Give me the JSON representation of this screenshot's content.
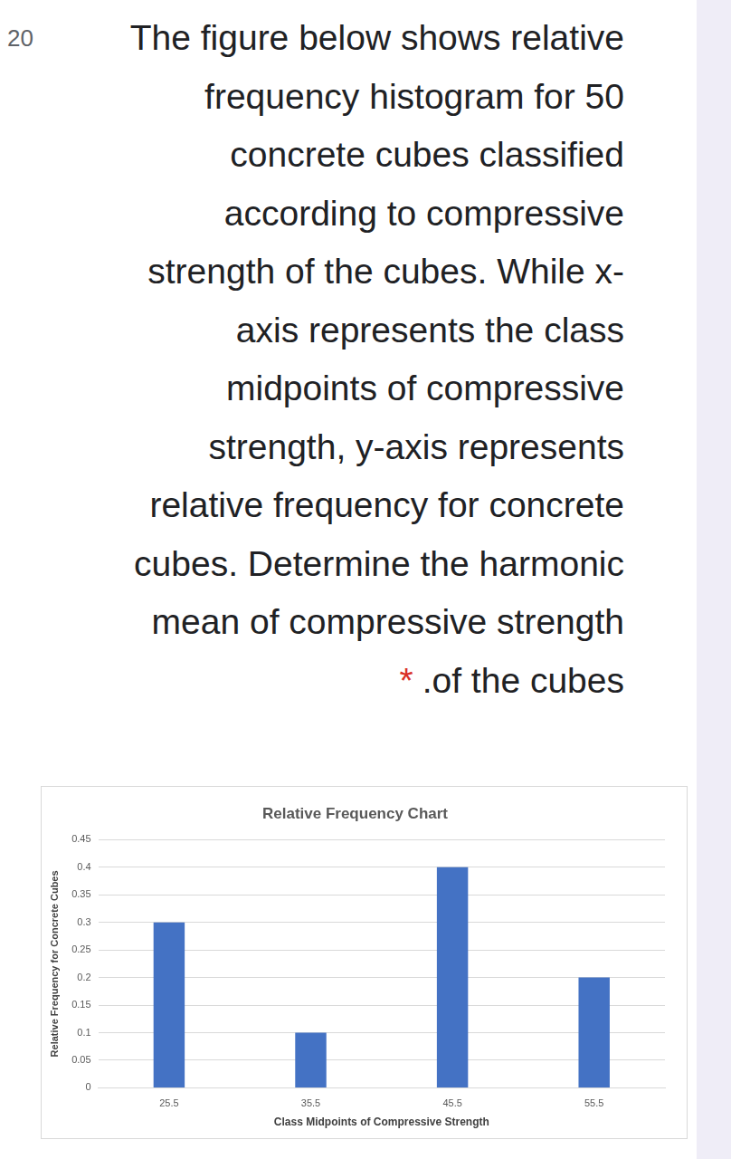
{
  "question": {
    "number": "20",
    "lines": [
      "The figure below shows relative",
      "frequency histogram for 50",
      "concrete cubes classified",
      "according to compressive",
      "strength of the cubes. While x-",
      "axis represents the class",
      "midpoints of compressive",
      "strength, y-axis represents",
      "relative frequency for concrete",
      "cubes. Determine the harmonic",
      "mean of compressive strength",
      ".of the cubes"
    ],
    "required_mark": "*"
  },
  "chart_data": {
    "type": "bar",
    "title": "Relative Frequency Chart",
    "x_label": "Class Midpoints of Compressive Strength",
    "y_label": "Relative Frequency for Concrete Cubes",
    "categories": [
      "25.5",
      "35.5",
      "45.5",
      "55.5"
    ],
    "values": [
      0.3,
      0.1,
      0.4,
      0.2
    ],
    "color": "#4472c4",
    "ylim": [
      0,
      0.45
    ],
    "yticks": [
      0,
      0.05,
      0.1,
      0.15,
      0.2,
      0.25,
      0.3,
      0.35,
      0.4,
      0.45
    ],
    "grid": true
  }
}
